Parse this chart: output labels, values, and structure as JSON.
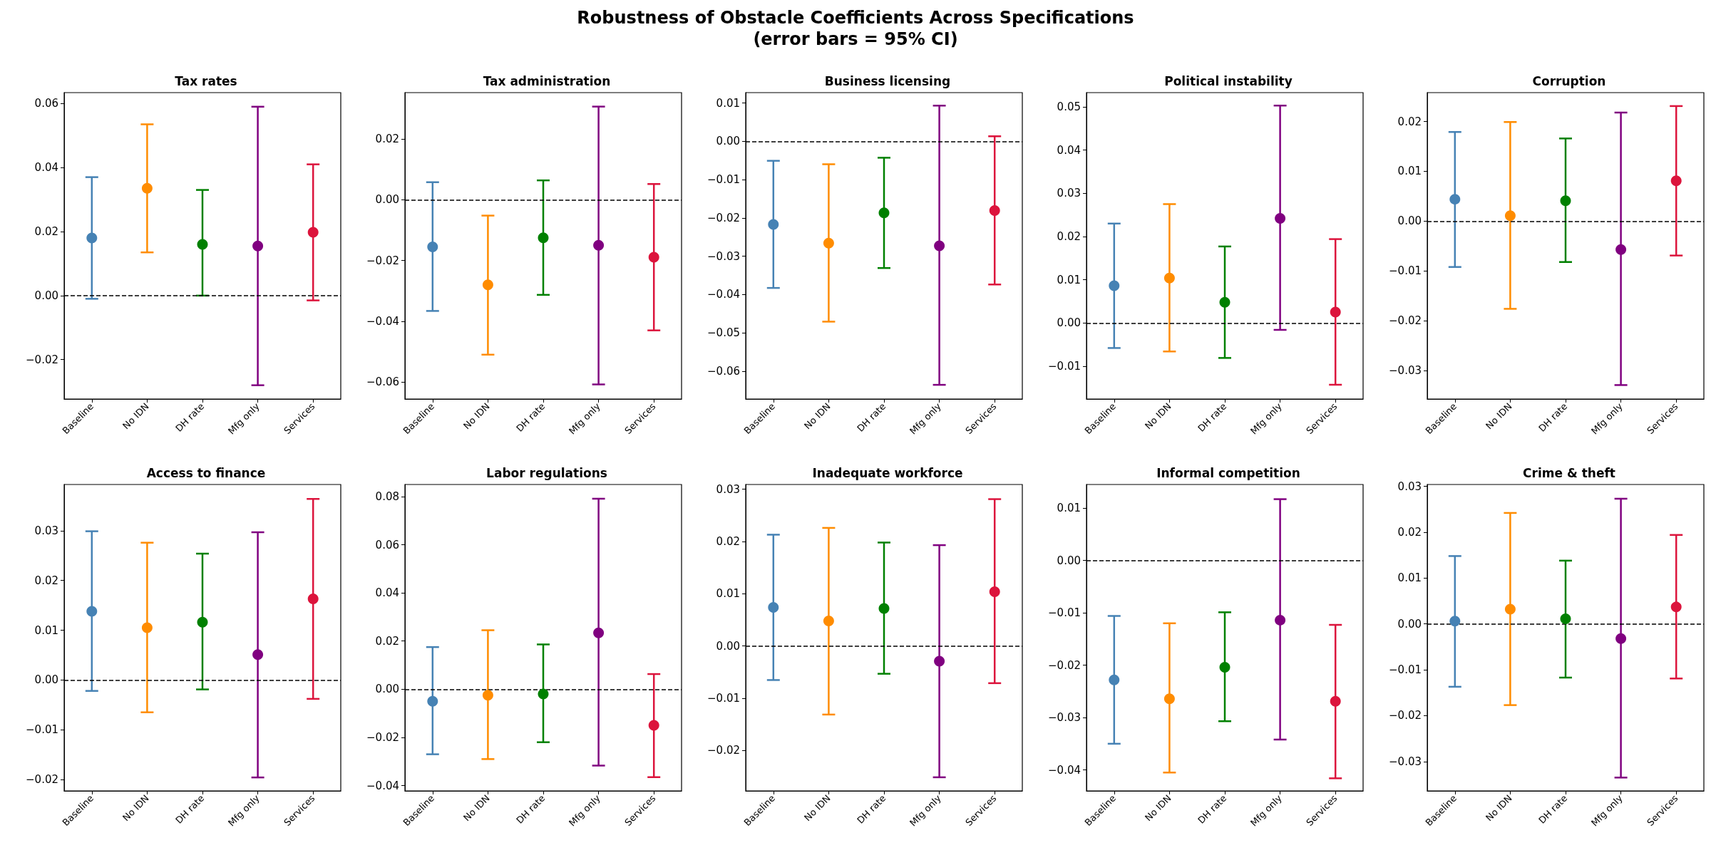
{
  "chart_data": [
    {
      "type": "other",
      "title": "Robustness of Obstacle Coefficients Across Specifications",
      "subtitle": "(error bars = 95% CI)"
    },
    {
      "type": "scatter",
      "title": "Tax rates",
      "categories": [
        "Baseline",
        "No IDN",
        "DH rate",
        "Mfg only",
        "Services"
      ],
      "colors": [
        "#4682b4",
        "#ff8c00",
        "#008000",
        "#800080",
        "#dc143c"
      ],
      "marker": "circle",
      "values": [
        0.018,
        0.0335,
        0.016,
        0.0155,
        0.0198
      ],
      "errors": [
        [
          -0.001,
          0.037
        ],
        [
          0.0135,
          0.0535
        ],
        [
          0.0,
          0.033
        ],
        [
          -0.028,
          0.059
        ],
        [
          -0.0015,
          0.041
        ]
      ],
      "ylim": [
        -0.0323,
        0.0634
      ],
      "yticks": [
        {
          "value": -0.02,
          "label": "−0.02"
        },
        {
          "value": 0,
          "label": "0.00"
        },
        0.02,
        0.04,
        0.06
      ],
      "ref_lines": [
        {
          "axis": "y",
          "value": 0,
          "color": "#000000",
          "line_style": "dashed"
        }
      ]
    },
    {
      "type": "scatter",
      "title": "Tax administration",
      "categories": [
        "Baseline",
        "No IDN",
        "DH rate",
        "Mfg only",
        "Services"
      ],
      "colors": [
        "#4682b4",
        "#ff8c00",
        "#008000",
        "#800080",
        "#dc143c"
      ],
      "marker": "circle",
      "values": [
        -0.0155,
        -0.028,
        -0.0125,
        -0.015,
        -0.0189
      ],
      "errors": [
        [
          -0.0366,
          0.0058
        ],
        [
          -0.051,
          -0.0052
        ],
        [
          -0.0313,
          0.0064
        ],
        [
          -0.0608,
          0.0307
        ],
        [
          -0.043,
          0.0052
        ]
      ],
      "ylim": [
        -0.0656,
        0.0353
      ],
      "yticks": [
        {
          "value": -0.06,
          "label": "−0.06"
        },
        {
          "value": -0.04,
          "label": "−0.04"
        },
        {
          "value": -0.02,
          "label": "−0.02"
        },
        {
          "value": 0,
          "label": "0.00"
        },
        0.02
      ],
      "ref_lines": [
        {
          "axis": "y",
          "value": 0,
          "color": "#000000",
          "line_style": "dashed"
        }
      ]
    },
    {
      "type": "scatter",
      "title": "Business licensing",
      "categories": [
        "Baseline",
        "No IDN",
        "DH rate",
        "Mfg only",
        "Services"
      ],
      "colors": [
        "#4682b4",
        "#ff8c00",
        "#008000",
        "#800080",
        "#dc143c"
      ],
      "marker": "circle",
      "values": [
        -0.0217,
        -0.0266,
        -0.0187,
        -0.0273,
        -0.0181
      ],
      "errors": [
        [
          -0.0383,
          -0.0051
        ],
        [
          -0.0471,
          -0.006
        ],
        [
          -0.0331,
          -0.0043
        ],
        [
          -0.0636,
          0.0093
        ],
        [
          -0.0374,
          0.0013
        ]
      ],
      "ylim": [
        -0.0673,
        0.0127
      ],
      "yticks": [
        {
          "value": -0.06,
          "label": "−0.06"
        },
        {
          "value": -0.05,
          "label": "−0.05"
        },
        {
          "value": -0.04,
          "label": "−0.04"
        },
        {
          "value": -0.03,
          "label": "−0.03"
        },
        {
          "value": -0.02,
          "label": "−0.02"
        },
        {
          "value": -0.01,
          "label": "−0.01"
        },
        {
          "value": 0,
          "label": "0.00"
        },
        0.01
      ],
      "ref_lines": [
        {
          "axis": "y",
          "value": 0,
          "color": "#000000",
          "line_style": "dashed"
        }
      ]
    },
    {
      "type": "scatter",
      "title": "Political instability",
      "categories": [
        "Baseline",
        "No IDN",
        "DH rate",
        "Mfg only",
        "Services"
      ],
      "colors": [
        "#4682b4",
        "#ff8c00",
        "#008000",
        "#800080",
        "#dc143c"
      ],
      "marker": "circle",
      "values": [
        0.0086,
        0.0104,
        0.0048,
        0.0242,
        0.0025
      ],
      "errors": [
        [
          -0.0058,
          0.023
        ],
        [
          -0.0066,
          0.0275
        ],
        [
          -0.0081,
          0.0177
        ],
        [
          -0.0016,
          0.0503
        ],
        [
          -0.0143,
          0.0194
        ]
      ],
      "ylim": [
        -0.0176,
        0.0533
      ],
      "yticks": [
        {
          "value": -0.01,
          "label": "−0.01"
        },
        {
          "value": 0,
          "label": "0.00"
        },
        0.01,
        0.02,
        0.03,
        0.04,
        0.05
      ],
      "ref_lines": [
        {
          "axis": "y",
          "value": 0,
          "color": "#000000",
          "line_style": "dashed"
        }
      ]
    },
    {
      "type": "scatter",
      "title": "Corruption",
      "categories": [
        "Baseline",
        "No IDN",
        "DH rate",
        "Mfg only",
        "Services"
      ],
      "colors": [
        "#4682b4",
        "#ff8c00",
        "#008000",
        "#800080",
        "#dc143c"
      ],
      "marker": "circle",
      "values": [
        0.0044,
        0.0011,
        0.0041,
        -0.0057,
        0.0081
      ],
      "errors": [
        [
          -0.0092,
          0.0179
        ],
        [
          -0.0176,
          0.0199
        ],
        [
          -0.0082,
          0.0166
        ],
        [
          -0.0329,
          0.0218
        ],
        [
          -0.0069,
          0.0231
        ]
      ],
      "ylim": [
        -0.0357,
        0.0258
      ],
      "yticks": [
        {
          "value": -0.03,
          "label": "−0.03"
        },
        {
          "value": -0.02,
          "label": "−0.02"
        },
        {
          "value": -0.01,
          "label": "−0.01"
        },
        {
          "value": 0,
          "label": "0.00"
        },
        0.01,
        0.02
      ],
      "ref_lines": [
        {
          "axis": "y",
          "value": 0,
          "color": "#000000",
          "line_style": "dashed"
        }
      ]
    },
    {
      "type": "scatter",
      "title": "Access to finance",
      "categories": [
        "Baseline",
        "No IDN",
        "DH rate",
        "Mfg only",
        "Services"
      ],
      "colors": [
        "#4682b4",
        "#ff8c00",
        "#008000",
        "#800080",
        "#dc143c"
      ],
      "marker": "circle",
      "values": [
        0.0138,
        0.0105,
        0.0116,
        0.0051,
        0.0163
      ],
      "errors": [
        [
          -0.0022,
          0.0299
        ],
        [
          -0.0065,
          0.0276
        ],
        [
          -0.0019,
          0.0254
        ],
        [
          -0.0196,
          0.0297
        ],
        [
          -0.0038,
          0.0364
        ]
      ],
      "ylim": [
        -0.0223,
        0.0393
      ],
      "yticks": [
        {
          "value": -0.02,
          "label": "−0.02"
        },
        {
          "value": -0.01,
          "label": "−0.01"
        },
        {
          "value": 0,
          "label": "0.00"
        },
        0.01,
        0.02,
        0.03
      ],
      "ref_lines": [
        {
          "axis": "y",
          "value": 0,
          "color": "#000000",
          "line_style": "dashed"
        }
      ]
    },
    {
      "type": "scatter",
      "title": "Labor regulations",
      "categories": [
        "Baseline",
        "No IDN",
        "DH rate",
        "Mfg only",
        "Services"
      ],
      "colors": [
        "#4682b4",
        "#ff8c00",
        "#008000",
        "#800080",
        "#dc143c"
      ],
      "marker": "circle",
      "values": [
        -0.005,
        -0.0025,
        -0.002,
        0.0234,
        -0.015
      ],
      "errors": [
        [
          -0.027,
          0.0175
        ],
        [
          -0.029,
          0.0245
        ],
        [
          -0.022,
          0.0186
        ],
        [
          -0.0317,
          0.0791
        ],
        [
          -0.0365,
          0.0063
        ]
      ],
      "ylim": [
        -0.0422,
        0.085
      ],
      "yticks": [
        {
          "value": -0.04,
          "label": "−0.04"
        },
        {
          "value": -0.02,
          "label": "−0.02"
        },
        {
          "value": 0,
          "label": "0.00"
        },
        0.02,
        0.04,
        0.06,
        0.08
      ],
      "ref_lines": [
        {
          "axis": "y",
          "value": 0,
          "color": "#000000",
          "line_style": "dashed"
        }
      ]
    },
    {
      "type": "scatter",
      "title": "Inadequate workforce",
      "categories": [
        "Baseline",
        "No IDN",
        "DH rate",
        "Mfg only",
        "Services"
      ],
      "colors": [
        "#4682b4",
        "#ff8c00",
        "#008000",
        "#800080",
        "#dc143c"
      ],
      "marker": "circle",
      "values": [
        0.0074,
        0.0048,
        0.0072,
        -0.0029,
        0.0104
      ],
      "errors": [
        [
          -0.0065,
          0.0213
        ],
        [
          -0.0131,
          0.0226
        ],
        [
          -0.0053,
          0.0198
        ],
        [
          -0.0251,
          0.0193
        ],
        [
          -0.0071,
          0.0281
        ]
      ],
      "ylim": [
        -0.0277,
        0.0309
      ],
      "yticks": [
        {
          "value": -0.02,
          "label": "−0.02"
        },
        {
          "value": -0.01,
          "label": "−0.01"
        },
        {
          "value": 0,
          "label": "0.00"
        },
        0.01,
        0.02,
        0.03
      ],
      "ref_lines": [
        {
          "axis": "y",
          "value": 0,
          "color": "#000000",
          "line_style": "dashed"
        }
      ]
    },
    {
      "type": "scatter",
      "title": "Informal competition",
      "categories": [
        "Baseline",
        "No IDN",
        "DH rate",
        "Mfg only",
        "Services"
      ],
      "colors": [
        "#4682b4",
        "#ff8c00",
        "#008000",
        "#800080",
        "#dc143c"
      ],
      "marker": "circle",
      "values": [
        -0.0228,
        -0.0264,
        -0.0204,
        -0.0114,
        -0.0269
      ],
      "errors": [
        [
          -0.035,
          -0.0106
        ],
        [
          -0.0405,
          -0.012
        ],
        [
          -0.0307,
          -0.0099
        ],
        [
          -0.0342,
          0.0117
        ],
        [
          -0.0416,
          -0.0123
        ]
      ],
      "ylim": [
        -0.044,
        0.0145
      ],
      "yticks": [
        {
          "value": -0.04,
          "label": "−0.04"
        },
        {
          "value": -0.03,
          "label": "−0.03"
        },
        {
          "value": -0.02,
          "label": "−0.02"
        },
        {
          "value": -0.01,
          "label": "−0.01"
        },
        {
          "value": 0,
          "label": "0.00"
        },
        0.01
      ],
      "ref_lines": [
        {
          "axis": "y",
          "value": 0,
          "color": "#000000",
          "line_style": "dashed"
        }
      ]
    },
    {
      "type": "scatter",
      "title": "Crime & theft",
      "categories": [
        "Baseline",
        "No IDN",
        "DH rate",
        "Mfg only",
        "Services"
      ],
      "colors": [
        "#4682b4",
        "#ff8c00",
        "#008000",
        "#800080",
        "#dc143c"
      ],
      "marker": "circle",
      "values": [
        0.0006,
        0.0032,
        0.0011,
        -0.0032,
        0.0037
      ],
      "errors": [
        [
          -0.0137,
          0.0148
        ],
        [
          -0.0177,
          0.0242
        ],
        [
          -0.0117,
          0.0138
        ],
        [
          -0.0335,
          0.0273
        ],
        [
          -0.0119,
          0.0194
        ]
      ],
      "ylim": [
        -0.0364,
        0.0304
      ],
      "yticks": [
        {
          "value": -0.03,
          "label": "−0.03"
        },
        {
          "value": -0.02,
          "label": "−0.02"
        },
        {
          "value": -0.01,
          "label": "−0.01"
        },
        {
          "value": 0,
          "label": "0.00"
        },
        0.01,
        0.02,
        0.03
      ],
      "ref_lines": [
        {
          "axis": "y",
          "value": 0,
          "color": "#000000",
          "line_style": "dashed"
        }
      ]
    }
  ]
}
